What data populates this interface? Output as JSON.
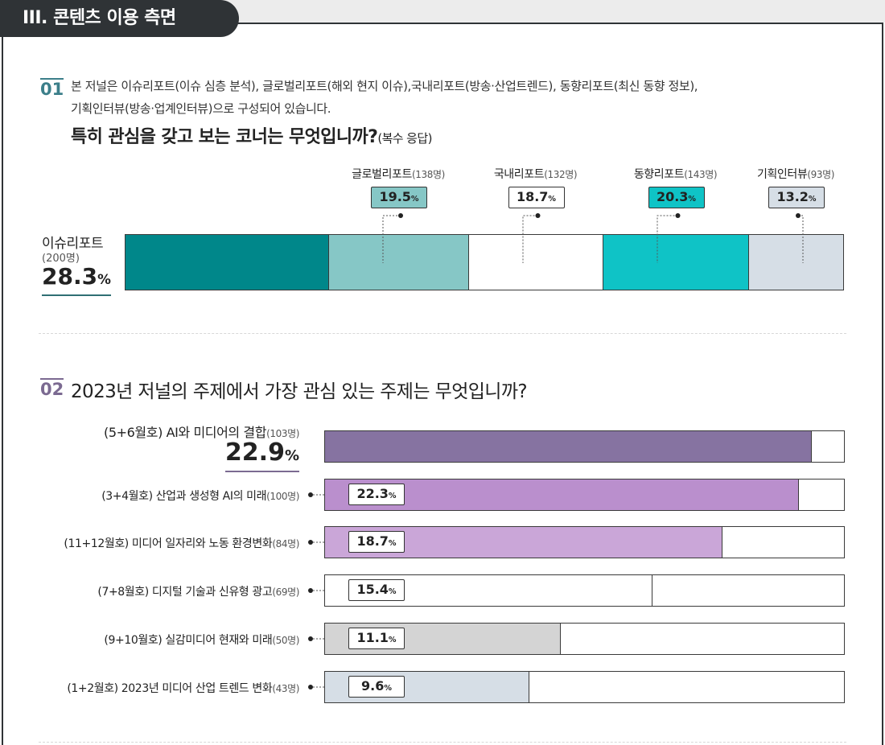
{
  "section": {
    "title": "III. 콘텐츠 이용 측면"
  },
  "q1": {
    "number": "01",
    "line1": "본 저널은 이슈리포트(이슈 심층 분석), 글로벌리포트(해외 현지 이슈),국내리포트(방송·산업트렌드), 동향리포트(최신 동향 정보),",
    "line2": "기획인터뷰(방송·업계인터뷰)으로 구성되어 있습니다.",
    "title_main": "특히 관심을 갖고 보는 코너는 무엇입니까?",
    "title_sub": "(복수 응답)"
  },
  "q2": {
    "number": "02",
    "title": "2023년 저널의 주제에서 가장 관심 있는 주제는 무엇입니까?"
  },
  "chart_data": [
    {
      "type": "bar",
      "stacked": true,
      "categories": [
        "이슈리포트",
        "글로벌리포트",
        "국내리포트",
        "동향리포트",
        "기획인터뷰"
      ],
      "counts": [
        "(200명)",
        "(138명)",
        "(132명)",
        "(143명)",
        "(93명)"
      ],
      "values": [
        28.3,
        19.5,
        18.7,
        20.3,
        13.2
      ],
      "labels": [
        "28.3",
        "19.5",
        "18.7",
        "20.3",
        "13.2"
      ],
      "unit": "%",
      "colors": [
        "#00878a",
        "#86c7c6",
        "#ffffff",
        "#0fc3c6",
        "#d6dee6"
      ],
      "callout_box_colors": [
        "#ffffff",
        "#86c7c6",
        "#ffffff",
        "#0fc3c6",
        "#d6dee6"
      ],
      "xlim": [
        0,
        100
      ]
    },
    {
      "type": "bar",
      "orientation": "horizontal",
      "categories": [
        "(5+6월호) AI와 미디어의 결합",
        "(3+4월호) 산업과 생성형 AI의 미래",
        "(11+12월호) 미디어 일자리와 노동 환경변화",
        "(7+8월호) 디지털 기술과 신유형 광고",
        "(9+10월호) 실감미디어 현재와 미래",
        "(1+2월호) 2023년 미디어 산업 트렌드 변화"
      ],
      "counts": [
        "(103명)",
        "(100명)",
        "(84명)",
        "(69명)",
        "(50명)",
        "(43명)"
      ],
      "values": [
        22.9,
        22.3,
        18.7,
        15.4,
        11.1,
        9.6
      ],
      "labels": [
        "22.9",
        "22.3",
        "18.7",
        "15.4",
        "11.1",
        "9.6"
      ],
      "unit": "%",
      "colors": [
        "#8673a1",
        "#ba8fcd",
        "#caa6d8",
        "#ffffff",
        "#d4d4d4",
        "#d6dee6"
      ],
      "xlim": [
        0,
        24.5
      ]
    }
  ]
}
